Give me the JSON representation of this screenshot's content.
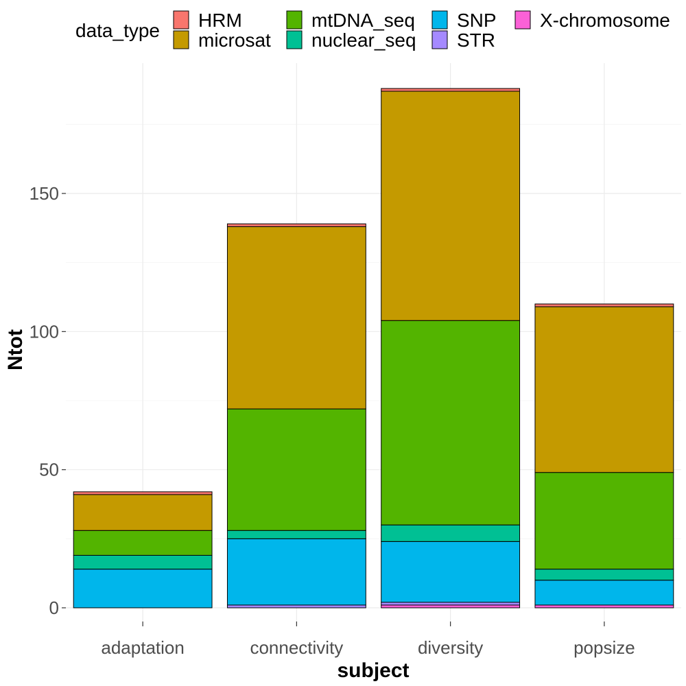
{
  "chart_data": {
    "type": "bar",
    "stacked": true,
    "xlabel": "subject",
    "ylabel": "Ntot",
    "categories": [
      "adaptation",
      "connectivity",
      "diversity",
      "popsize"
    ],
    "yticks": [
      0,
      50,
      100,
      150
    ],
    "ylim": [
      0,
      190
    ],
    "grid": true,
    "legend": {
      "title": "data_type",
      "placement": "top",
      "entries": [
        "HRM",
        "microsat",
        "mtDNA_seq",
        "nuclear_seq",
        "SNP",
        "STR",
        "X-chromosome"
      ]
    },
    "stack_order_bottom_to_top": [
      "X-chromosome",
      "STR",
      "SNP",
      "nuclear_seq",
      "mtDNA_seq",
      "microsat",
      "HRM"
    ],
    "series": [
      {
        "name": "HRM",
        "color": "#F8766D",
        "values": [
          1,
          1,
          1,
          1
        ]
      },
      {
        "name": "microsat",
        "color": "#C49A00",
        "values": [
          13,
          66,
          83,
          60
        ]
      },
      {
        "name": "mtDNA_seq",
        "color": "#53B400",
        "values": [
          9,
          44,
          74,
          35
        ]
      },
      {
        "name": "nuclear_seq",
        "color": "#00C094",
        "values": [
          5,
          3,
          6,
          4
        ]
      },
      {
        "name": "SNP",
        "color": "#00B6EB",
        "values": [
          14,
          24,
          22,
          9
        ]
      },
      {
        "name": "STR",
        "color": "#A58AFF",
        "values": [
          0,
          1,
          1,
          0
        ]
      },
      {
        "name": "X-chromosome",
        "color": "#FB61D7",
        "values": [
          0,
          0,
          1,
          1
        ]
      }
    ]
  }
}
